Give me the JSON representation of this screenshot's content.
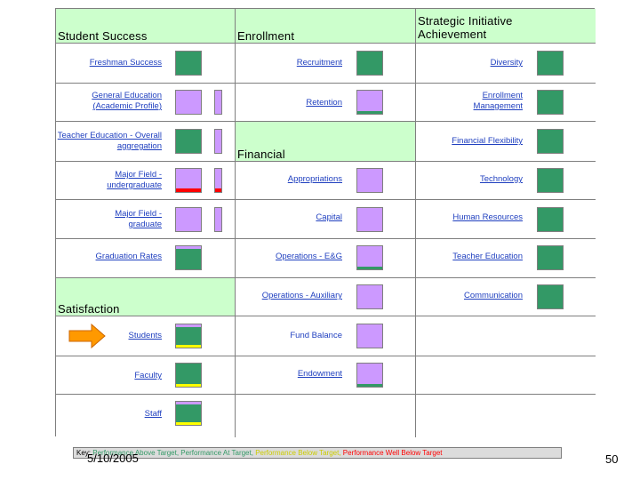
{
  "colors": {
    "green": "#339966",
    "purple": "#cc99ff",
    "yellow": "#ffff00",
    "red": "#ff0000",
    "gray_strip": "#999999",
    "header_bg": "#ccffcc",
    "arrow": "#ff9900"
  },
  "headers": {
    "student_success": "Student Success",
    "enrollment": "Enrollment",
    "strategic": "Strategic Initiative Achievement",
    "financial": "Financial",
    "satisfaction": "Satisfaction"
  },
  "student_success": {
    "freshman": "Freshman Success",
    "gen_ed": "General Education (Academic Profile)",
    "teacher_ed": "Teacher Education - Overall aggregation",
    "major_ug": "Major Field - undergraduate",
    "major_grad": "Major Field - graduate",
    "grad_rates": "Graduation Rates"
  },
  "enrollment": {
    "recruitment": "Recruitment",
    "retention": "Retention"
  },
  "financial": {
    "appropriations": "Appropriations",
    "capital": "Capital",
    "ops_eg": "Operations - E&G",
    "ops_aux": "Operations - Auxiliary",
    "fund_balance": "Fund Balance",
    "endowment": "Endowment"
  },
  "strategic": {
    "diversity": "Diversity",
    "enrollment_mgmt": "Enrollment Management",
    "financial_flex": "Financial Flexibility",
    "technology": "Technology",
    "human_resources": "Human Resources",
    "teacher_education": "Teacher Education",
    "communication": "Communication"
  },
  "satisfaction": {
    "students": "Students",
    "faculty": "Faculty",
    "staff": "Staff"
  },
  "legend": {
    "key": "Key:",
    "above": "Performance Above Target,",
    "at": "Performance At Target,",
    "below": "Performance Below Target,",
    "well_below": "Performance Well Below Target"
  },
  "footer": {
    "date": "5/10/2005",
    "page": "50"
  }
}
